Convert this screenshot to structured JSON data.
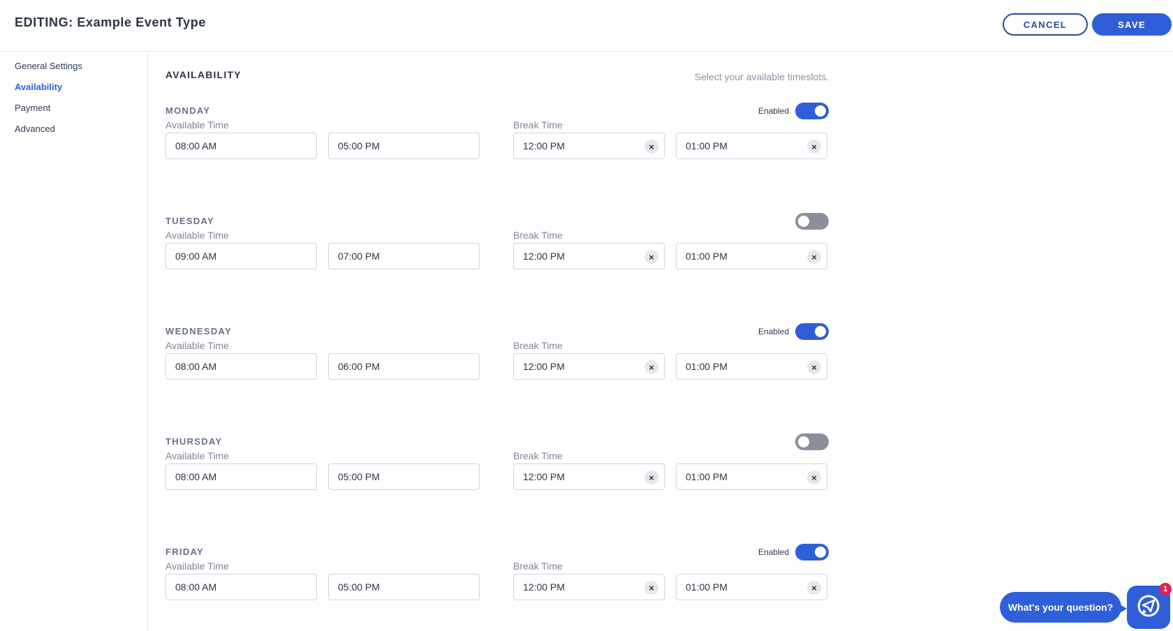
{
  "header": {
    "title": "EDITING: Example Event Type",
    "cancel_label": "CANCEL",
    "save_label": "SAVE"
  },
  "sidebar": {
    "items": [
      {
        "label": "General Settings",
        "active": false
      },
      {
        "label": "Availability",
        "active": true
      },
      {
        "label": "Payment",
        "active": false
      },
      {
        "label": "Advanced",
        "active": false
      }
    ]
  },
  "availability": {
    "title": "AVAILABILITY",
    "hint": "Select your available timeslots.",
    "available_label": "Available Time",
    "break_label": "Break Time",
    "enabled_label": "Enabled",
    "days": [
      {
        "name": "MONDAY",
        "enabled": true,
        "start": "08:00 AM",
        "end": "05:00 PM",
        "break_start": "12:00 PM",
        "break_end": "01:00 PM"
      },
      {
        "name": "TUESDAY",
        "enabled": false,
        "start": "09:00 AM",
        "end": "07:00 PM",
        "break_start": "12:00 PM",
        "break_end": "01:00 PM"
      },
      {
        "name": "WEDNESDAY",
        "enabled": true,
        "start": "08:00 AM",
        "end": "06:00 PM",
        "break_start": "12:00 PM",
        "break_end": "01:00 PM"
      },
      {
        "name": "THURSDAY",
        "enabled": false,
        "start": "08:00 AM",
        "end": "05:00 PM",
        "break_start": "12:00 PM",
        "break_end": "01:00 PM"
      },
      {
        "name": "FRIDAY",
        "enabled": true,
        "start": "08:00 AM",
        "end": "05:00 PM",
        "break_start": "12:00 PM",
        "break_end": "01:00 PM"
      }
    ]
  },
  "chat": {
    "prompt": "What's your question?",
    "badge_count": "1"
  },
  "colors": {
    "accent": "#2f5fd8",
    "toggle_off": "#8a8f9b",
    "badge": "#e0244f"
  }
}
